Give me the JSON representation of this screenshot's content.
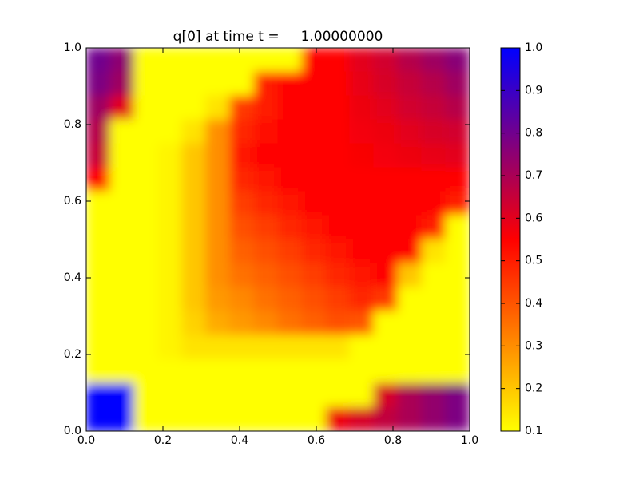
{
  "chart_data": {
    "type": "heatmap",
    "title": "q[0] at time t =     1.00000000",
    "x": [
      0.03125,
      0.09375,
      0.15625,
      0.21875,
      0.28125,
      0.34375,
      0.40625,
      0.46875,
      0.53125,
      0.59375,
      0.65625,
      0.71875,
      0.78125,
      0.84375,
      0.90625,
      0.96875
    ],
    "y": [
      0.96875,
      0.90625,
      0.84375,
      0.78125,
      0.71875,
      0.65625,
      0.59375,
      0.53125,
      0.46875,
      0.40625,
      0.34375,
      0.28125,
      0.21875,
      0.15625,
      0.09375,
      0.03125
    ],
    "z": [
      [
        0.8,
        0.75,
        0.1,
        0.1,
        0.1,
        0.1,
        0.1,
        0.1,
        0.1,
        0.55,
        0.55,
        0.6,
        0.63,
        0.68,
        0.72,
        0.76
      ],
      [
        0.78,
        0.72,
        0.1,
        0.1,
        0.1,
        0.1,
        0.1,
        0.5,
        0.55,
        0.55,
        0.55,
        0.59,
        0.62,
        0.65,
        0.68,
        0.72
      ],
      [
        0.72,
        0.6,
        0.1,
        0.1,
        0.1,
        0.15,
        0.45,
        0.5,
        0.55,
        0.55,
        0.55,
        0.58,
        0.6,
        0.63,
        0.65,
        0.68
      ],
      [
        0.68,
        0.1,
        0.1,
        0.1,
        0.15,
        0.3,
        0.48,
        0.52,
        0.55,
        0.55,
        0.55,
        0.57,
        0.58,
        0.6,
        0.62,
        0.63
      ],
      [
        0.65,
        0.1,
        0.1,
        0.12,
        0.2,
        0.3,
        0.51,
        0.54,
        0.55,
        0.55,
        0.55,
        0.56,
        0.57,
        0.58,
        0.59,
        0.6
      ],
      [
        0.55,
        0.1,
        0.1,
        0.12,
        0.2,
        0.3,
        0.48,
        0.51,
        0.54,
        0.55,
        0.55,
        0.55,
        0.55,
        0.55,
        0.55,
        0.55
      ],
      [
        0.1,
        0.1,
        0.1,
        0.12,
        0.2,
        0.3,
        0.44,
        0.48,
        0.51,
        0.54,
        0.55,
        0.55,
        0.55,
        0.55,
        0.55,
        0.5
      ],
      [
        0.1,
        0.1,
        0.1,
        0.12,
        0.2,
        0.3,
        0.41,
        0.44,
        0.48,
        0.51,
        0.54,
        0.55,
        0.55,
        0.55,
        0.5,
        0.1
      ],
      [
        0.1,
        0.1,
        0.1,
        0.12,
        0.2,
        0.3,
        0.38,
        0.41,
        0.44,
        0.48,
        0.51,
        0.54,
        0.55,
        0.55,
        0.15,
        0.1
      ],
      [
        0.1,
        0.1,
        0.1,
        0.12,
        0.2,
        0.3,
        0.35,
        0.38,
        0.41,
        0.44,
        0.48,
        0.51,
        0.54,
        0.2,
        0.1,
        0.1
      ],
      [
        0.1,
        0.1,
        0.1,
        0.12,
        0.2,
        0.28,
        0.31,
        0.35,
        0.38,
        0.41,
        0.44,
        0.48,
        0.45,
        0.1,
        0.1,
        0.1
      ],
      [
        0.1,
        0.1,
        0.1,
        0.12,
        0.18,
        0.25,
        0.28,
        0.31,
        0.35,
        0.38,
        0.41,
        0.4,
        0.1,
        0.1,
        0.1,
        0.1
      ],
      [
        0.1,
        0.1,
        0.1,
        0.12,
        0.15,
        0.15,
        0.15,
        0.15,
        0.15,
        0.15,
        0.15,
        0.1,
        0.1,
        0.1,
        0.1,
        0.1
      ],
      [
        0.1,
        0.1,
        0.1,
        0.1,
        0.1,
        0.1,
        0.1,
        0.1,
        0.1,
        0.1,
        0.1,
        0.1,
        0.1,
        0.1,
        0.1,
        0.1
      ],
      [
        1,
        1,
        0.1,
        0.1,
        0.1,
        0.1,
        0.1,
        0.1,
        0.1,
        0.1,
        0.1,
        0.1,
        0.62,
        0.7,
        0.74,
        0.78
      ],
      [
        1,
        1,
        0.1,
        0.1,
        0.1,
        0.1,
        0.1,
        0.1,
        0.1,
        0.1,
        0.58,
        0.62,
        0.66,
        0.7,
        0.74,
        0.78
      ]
    ],
    "xlim": [
      0,
      1
    ],
    "ylim": [
      0,
      1
    ],
    "xticks": [
      {
        "value": 0,
        "label": "0.0"
      },
      0.2,
      0.4,
      0.6,
      0.8,
      {
        "value": 1,
        "label": "1.0"
      }
    ],
    "yticks": [
      {
        "value": 0,
        "label": "0.0"
      },
      0.2,
      0.4,
      0.6,
      0.8,
      {
        "value": 1,
        "label": "1.0"
      }
    ],
    "clim": [
      0.1,
      1
    ],
    "cticks": [
      0.1,
      0.2,
      0.3,
      0.4,
      0.5,
      0.6,
      0.7,
      0.8,
      0.9,
      {
        "value": 1,
        "label": "1.0"
      }
    ],
    "colormap": [
      {
        "value": 0.1,
        "color": "#ffff00"
      },
      {
        "value": 0.55,
        "color": "#ff0000"
      },
      {
        "value": 1,
        "color": "#0000ff"
      }
    ]
  }
}
